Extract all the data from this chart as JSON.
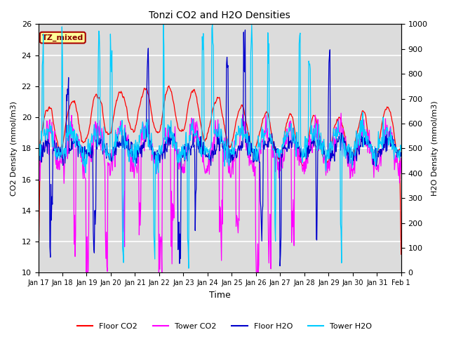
{
  "title": "Tonzi CO2 and H2O Densities",
  "xlabel": "Time",
  "ylabel_left": "CO2 Density (mmol/m3)",
  "ylabel_right": "H2O Density (mmol/m3)",
  "ylim_left": [
    10,
    26
  ],
  "ylim_right": [
    0,
    1000
  ],
  "yticks_left": [
    10,
    12,
    14,
    16,
    18,
    20,
    22,
    24,
    26
  ],
  "yticks_right": [
    0,
    100,
    200,
    300,
    400,
    500,
    600,
    700,
    800,
    900,
    1000
  ],
  "xtick_labels": [
    "Jan 17",
    "Jan 18",
    "Jan 19",
    "Jan 20",
    "Jan 21",
    "Jan 22",
    "Jan 23",
    "Jan 24",
    "Jan 25",
    "Jan 26",
    "Jan 27",
    "Jan 28",
    "Jan 29",
    "Jan 30",
    "Jan 31",
    "Feb 1"
  ],
  "color_floor_co2": "#FF0000",
  "color_tower_co2": "#FF00FF",
  "color_floor_h2o": "#0000CC",
  "color_tower_h2o": "#00CCFF",
  "legend_labels": [
    "Floor CO2",
    "Tower CO2",
    "Floor H2O",
    "Tower H2O"
  ],
  "annotation_text": "TZ_mixed",
  "annotation_color_bg": "#FFFF99",
  "annotation_color_text": "#880000",
  "annotation_edge_color": "#AA0000",
  "background_color": "#DCDCDC",
  "grid_color": "#FFFFFF",
  "fig_width": 6.4,
  "fig_height": 4.8,
  "dpi": 100
}
